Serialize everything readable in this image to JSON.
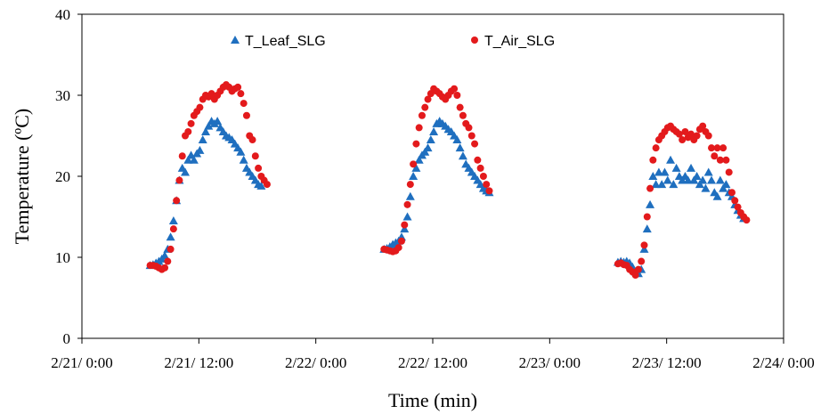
{
  "chart_data": {
    "type": "scatter",
    "title": "",
    "xlabel": "Time (min)",
    "ylabel": "Temperature (ºC)",
    "xlim_hours": [
      0,
      72
    ],
    "ylim": [
      0,
      40
    ],
    "x_unit": "hours since 2/21/ 0:00",
    "x_ticks": [
      {
        "label": "2/21/ 0:00",
        "value": 0
      },
      {
        "label": "2/21/ 12:00",
        "value": 12
      },
      {
        "label": "2/22/ 0:00",
        "value": 24
      },
      {
        "label": "2/22/ 12:00",
        "value": 36
      },
      {
        "label": "2/23/ 0:00",
        "value": 48
      },
      {
        "label": "2/23/ 12:00",
        "value": 60
      },
      {
        "label": "2/24/ 0:00",
        "value": 72
      }
    ],
    "y_ticks": [
      0,
      10,
      20,
      30,
      40
    ],
    "grid": false,
    "legend_position": "top",
    "series": [
      {
        "name": "T_Leaf_SLG",
        "color": "#1f6fbf",
        "marker": "triangle",
        "points": [
          [
            7.0,
            9.0
          ],
          [
            7.3,
            9.1
          ],
          [
            7.6,
            9.3
          ],
          [
            7.9,
            9.5
          ],
          [
            8.2,
            9.8
          ],
          [
            8.5,
            10.2
          ],
          [
            8.8,
            11.0
          ],
          [
            9.1,
            12.5
          ],
          [
            9.4,
            14.5
          ],
          [
            9.7,
            17.0
          ],
          [
            10.0,
            19.5
          ],
          [
            10.3,
            21.0
          ],
          [
            10.6,
            20.5
          ],
          [
            10.9,
            22.0
          ],
          [
            11.2,
            22.6
          ],
          [
            11.5,
            22.0
          ],
          [
            11.8,
            22.8
          ],
          [
            12.1,
            23.2
          ],
          [
            12.4,
            24.5
          ],
          [
            12.7,
            25.5
          ],
          [
            13.0,
            26.2
          ],
          [
            13.3,
            26.8
          ],
          [
            13.6,
            26.5
          ],
          [
            13.9,
            26.8
          ],
          [
            14.2,
            26.0
          ],
          [
            14.5,
            25.5
          ],
          [
            14.8,
            25.0
          ],
          [
            15.1,
            24.8
          ],
          [
            15.4,
            24.5
          ],
          [
            15.7,
            24.0
          ],
          [
            16.0,
            23.5
          ],
          [
            16.3,
            23.0
          ],
          [
            16.6,
            22.0
          ],
          [
            16.9,
            21.0
          ],
          [
            17.2,
            20.5
          ],
          [
            17.5,
            20.0
          ],
          [
            17.8,
            19.5
          ],
          [
            18.1,
            19.0
          ],
          [
            18.4,
            18.8
          ],
          [
            31.0,
            11.0
          ],
          [
            31.3,
            11.1
          ],
          [
            31.6,
            11.3
          ],
          [
            31.9,
            11.6
          ],
          [
            32.2,
            11.8
          ],
          [
            32.5,
            12.0
          ],
          [
            32.8,
            12.5
          ],
          [
            33.1,
            13.5
          ],
          [
            33.4,
            15.0
          ],
          [
            33.7,
            17.5
          ],
          [
            34.0,
            20.0
          ],
          [
            34.3,
            21.0
          ],
          [
            34.6,
            22.0
          ],
          [
            34.9,
            22.6
          ],
          [
            35.2,
            23.0
          ],
          [
            35.5,
            23.5
          ],
          [
            35.8,
            24.5
          ],
          [
            36.1,
            25.5
          ],
          [
            36.4,
            26.5
          ],
          [
            36.7,
            26.8
          ],
          [
            37.0,
            26.5
          ],
          [
            37.3,
            26.2
          ],
          [
            37.6,
            25.8
          ],
          [
            37.9,
            25.5
          ],
          [
            38.2,
            25.0
          ],
          [
            38.5,
            24.5
          ],
          [
            38.8,
            23.5
          ],
          [
            39.1,
            22.5
          ],
          [
            39.4,
            21.5
          ],
          [
            39.7,
            21.0
          ],
          [
            40.0,
            20.5
          ],
          [
            40.3,
            20.0
          ],
          [
            40.6,
            19.5
          ],
          [
            40.9,
            19.0
          ],
          [
            41.2,
            18.5
          ],
          [
            41.5,
            18.2
          ],
          [
            41.8,
            18.0
          ],
          [
            55.0,
            9.4
          ],
          [
            55.3,
            9.5
          ],
          [
            55.6,
            9.4
          ],
          [
            55.9,
            9.5
          ],
          [
            56.2,
            9.3
          ],
          [
            56.5,
            8.8
          ],
          [
            56.8,
            8.2
          ],
          [
            57.1,
            8.0
          ],
          [
            57.4,
            8.5
          ],
          [
            57.7,
            11.0
          ],
          [
            58.0,
            13.5
          ],
          [
            58.3,
            16.5
          ],
          [
            58.6,
            20.0
          ],
          [
            58.9,
            19.0
          ],
          [
            59.2,
            20.5
          ],
          [
            59.5,
            19.0
          ],
          [
            59.8,
            20.5
          ],
          [
            60.1,
            19.5
          ],
          [
            60.4,
            22.0
          ],
          [
            60.7,
            19.0
          ],
          [
            61.0,
            21.0
          ],
          [
            61.3,
            20.0
          ],
          [
            61.6,
            19.5
          ],
          [
            61.9,
            20.0
          ],
          [
            62.2,
            19.5
          ],
          [
            62.5,
            21.0
          ],
          [
            62.8,
            19.5
          ],
          [
            63.1,
            20.0
          ],
          [
            63.4,
            19.0
          ],
          [
            63.7,
            19.5
          ],
          [
            64.0,
            18.5
          ],
          [
            64.3,
            20.5
          ],
          [
            64.6,
            19.5
          ],
          [
            64.9,
            18.0
          ],
          [
            65.2,
            17.5
          ],
          [
            65.5,
            19.5
          ],
          [
            65.8,
            18.5
          ],
          [
            66.1,
            19.0
          ],
          [
            66.4,
            18.0
          ],
          [
            66.7,
            17.5
          ],
          [
            67.0,
            16.5
          ],
          [
            67.3,
            15.8
          ],
          [
            67.6,
            15.2
          ],
          [
            67.9,
            14.8
          ]
        ]
      },
      {
        "name": "T_Air_SLG",
        "color": "#e31a1c",
        "marker": "circle",
        "points": [
          [
            7.0,
            9.0
          ],
          [
            7.3,
            9.0
          ],
          [
            7.6,
            8.9
          ],
          [
            7.9,
            8.7
          ],
          [
            8.2,
            8.5
          ],
          [
            8.5,
            8.7
          ],
          [
            8.8,
            9.5
          ],
          [
            9.1,
            11.0
          ],
          [
            9.4,
            13.5
          ],
          [
            9.7,
            17.0
          ],
          [
            10.0,
            19.5
          ],
          [
            10.3,
            22.5
          ],
          [
            10.6,
            25.0
          ],
          [
            10.9,
            25.5
          ],
          [
            11.2,
            26.5
          ],
          [
            11.5,
            27.5
          ],
          [
            11.8,
            28.0
          ],
          [
            12.1,
            28.5
          ],
          [
            12.4,
            29.5
          ],
          [
            12.7,
            30.0
          ],
          [
            13.0,
            29.8
          ],
          [
            13.3,
            30.2
          ],
          [
            13.6,
            29.5
          ],
          [
            13.9,
            30.0
          ],
          [
            14.2,
            30.5
          ],
          [
            14.5,
            31.0
          ],
          [
            14.8,
            31.3
          ],
          [
            15.1,
            31.0
          ],
          [
            15.4,
            30.5
          ],
          [
            15.7,
            30.8
          ],
          [
            16.0,
            31.0
          ],
          [
            16.3,
            30.2
          ],
          [
            16.6,
            29.0
          ],
          [
            16.9,
            27.5
          ],
          [
            17.2,
            25.0
          ],
          [
            17.5,
            24.5
          ],
          [
            17.8,
            22.5
          ],
          [
            18.1,
            21.0
          ],
          [
            18.4,
            20.0
          ],
          [
            18.7,
            19.5
          ],
          [
            19.0,
            19.0
          ],
          [
            31.0,
            11.0
          ],
          [
            31.3,
            10.9
          ],
          [
            31.6,
            10.8
          ],
          [
            31.9,
            10.7
          ],
          [
            32.2,
            10.8
          ],
          [
            32.5,
            11.2
          ],
          [
            32.8,
            12.0
          ],
          [
            33.1,
            14.0
          ],
          [
            33.4,
            16.5
          ],
          [
            33.7,
            19.0
          ],
          [
            34.0,
            21.5
          ],
          [
            34.3,
            24.0
          ],
          [
            34.6,
            26.0
          ],
          [
            34.9,
            27.5
          ],
          [
            35.2,
            28.5
          ],
          [
            35.5,
            29.5
          ],
          [
            35.8,
            30.2
          ],
          [
            36.1,
            30.8
          ],
          [
            36.4,
            30.5
          ],
          [
            36.7,
            30.2
          ],
          [
            37.0,
            29.8
          ],
          [
            37.3,
            29.5
          ],
          [
            37.6,
            30.0
          ],
          [
            37.9,
            30.5
          ],
          [
            38.2,
            30.8
          ],
          [
            38.5,
            30.0
          ],
          [
            38.8,
            28.5
          ],
          [
            39.1,
            27.5
          ],
          [
            39.4,
            26.5
          ],
          [
            39.7,
            26.0
          ],
          [
            40.0,
            25.0
          ],
          [
            40.3,
            24.0
          ],
          [
            40.6,
            22.0
          ],
          [
            40.9,
            21.0
          ],
          [
            41.2,
            20.0
          ],
          [
            41.5,
            19.0
          ],
          [
            41.8,
            18.2
          ],
          [
            55.0,
            9.2
          ],
          [
            55.3,
            9.3
          ],
          [
            55.6,
            9.1
          ],
          [
            55.9,
            9.0
          ],
          [
            56.2,
            8.5
          ],
          [
            56.5,
            8.2
          ],
          [
            56.8,
            7.8
          ],
          [
            57.1,
            8.5
          ],
          [
            57.4,
            9.5
          ],
          [
            57.7,
            11.5
          ],
          [
            58.0,
            15.0
          ],
          [
            58.3,
            18.5
          ],
          [
            58.6,
            22.0
          ],
          [
            58.9,
            23.5
          ],
          [
            59.2,
            24.5
          ],
          [
            59.5,
            25.0
          ],
          [
            59.8,
            25.5
          ],
          [
            60.1,
            26.0
          ],
          [
            60.4,
            26.2
          ],
          [
            60.7,
            25.8
          ],
          [
            61.0,
            25.5
          ],
          [
            61.3,
            25.2
          ],
          [
            61.6,
            24.5
          ],
          [
            61.9,
            25.5
          ],
          [
            62.2,
            24.8
          ],
          [
            62.5,
            25.2
          ],
          [
            62.8,
            24.5
          ],
          [
            63.1,
            25.0
          ],
          [
            63.4,
            25.8
          ],
          [
            63.7,
            26.2
          ],
          [
            64.0,
            25.5
          ],
          [
            64.3,
            25.0
          ],
          [
            64.6,
            23.5
          ],
          [
            64.9,
            22.5
          ],
          [
            65.2,
            23.5
          ],
          [
            65.5,
            22.0
          ],
          [
            65.8,
            23.5
          ],
          [
            66.1,
            22.0
          ],
          [
            66.4,
            20.5
          ],
          [
            66.7,
            18.0
          ],
          [
            67.0,
            17.0
          ],
          [
            67.3,
            16.2
          ],
          [
            67.6,
            15.5
          ],
          [
            67.9,
            15.0
          ],
          [
            68.2,
            14.6
          ]
        ]
      }
    ]
  }
}
